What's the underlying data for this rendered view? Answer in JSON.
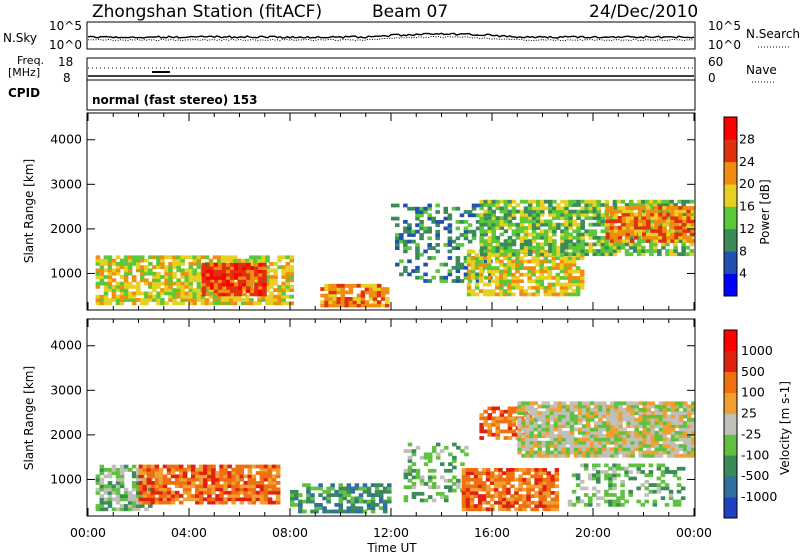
{
  "header": {
    "station": "Zhongshan Station (fitACF)",
    "beam": "Beam 07",
    "date": "24/Dec/2010"
  },
  "top_panels": {
    "noise": {
      "left_label": "N.Sky",
      "right_label": "N.Search",
      "left_ticks": [
        "10^5",
        "10^0"
      ],
      "right_ticks": [
        "10^5",
        "10^0"
      ]
    },
    "freq": {
      "left_label_1": "Freq.",
      "left_label_2": "[MHz]",
      "left_ticks": [
        "18",
        "8"
      ],
      "right_label": "Nave",
      "right_ticks": [
        "60",
        "0"
      ]
    },
    "cpid": {
      "label": "CPID",
      "text": "normal (fast stereo) 153"
    }
  },
  "chart_data": [
    {
      "type": "heatmap",
      "name": "power",
      "ylabel": "Slant Range [km]",
      "yticks": [
        1000,
        2000,
        3000,
        4000
      ],
      "ylim": [
        180,
        4600
      ],
      "colorbar_label": "Power [dB]",
      "colorbar_ticks": [
        "4",
        "8",
        "12",
        "16",
        "20",
        "24",
        "28"
      ],
      "colors": [
        "#0000ff",
        "#2050b0",
        "#3a8a5a",
        "#5ac83a",
        "#e8d020",
        "#f08c10",
        "#e03010",
        "#ff0000"
      ],
      "blobs": [
        {
          "t0": 0.3,
          "t1": 8.0,
          "r0": 300,
          "r1": 1400,
          "level": 4,
          "density": 0.75
        },
        {
          "t0": 4.5,
          "t1": 7.0,
          "r0": 500,
          "r1": 1200,
          "level": 6,
          "density": 0.9
        },
        {
          "t0": 9.2,
          "t1": 11.8,
          "r0": 250,
          "r1": 700,
          "level": 5,
          "density": 0.8
        },
        {
          "t0": 12.0,
          "t1": 16.0,
          "r0": 800,
          "r1": 2500,
          "level": 2,
          "density": 0.35
        },
        {
          "t0": 15.0,
          "t1": 19.5,
          "r0": 500,
          "r1": 1500,
          "level": 4,
          "density": 0.7
        },
        {
          "t0": 15.5,
          "t1": 23.9,
          "r0": 1400,
          "r1": 2600,
          "level": 3,
          "density": 0.75
        },
        {
          "t0": 20.5,
          "t1": 23.9,
          "r0": 1700,
          "r1": 2500,
          "level": 5,
          "density": 0.8
        }
      ]
    },
    {
      "type": "heatmap",
      "name": "velocity",
      "ylabel": "Slant Range [km]",
      "yticks": [
        1000,
        2000,
        3000,
        4000
      ],
      "ylim": [
        180,
        4600
      ],
      "xlabel": "Time UT",
      "xticks": [
        "00:00",
        "04:00",
        "08:00",
        "12:00",
        "16:00",
        "20:00",
        "00:00"
      ],
      "colorbar_label": "Velocity [m s-1]",
      "colorbar_ticks": [
        "1000",
        "500",
        "100",
        "25",
        "-25",
        "-100",
        "-500",
        "-1000"
      ],
      "colors": [
        "#2040c0",
        "#3070a0",
        "#3a8a5a",
        "#60c040",
        "#c0c0b8",
        "#f0a030",
        "#f07010",
        "#e02010",
        "#ff0000"
      ],
      "blobs": [
        {
          "t0": 0.3,
          "t1": 2.5,
          "r0": 300,
          "r1": 1300,
          "level": 3,
          "density": 0.7
        },
        {
          "t0": 2.0,
          "t1": 7.5,
          "r0": 450,
          "r1": 1300,
          "level": 6,
          "density": 0.85
        },
        {
          "t0": 8.0,
          "t1": 12.0,
          "r0": 250,
          "r1": 900,
          "level": 2,
          "density": 0.6
        },
        {
          "t0": 12.5,
          "t1": 15.0,
          "r0": 500,
          "r1": 1800,
          "level": 3,
          "density": 0.35
        },
        {
          "t0": 14.8,
          "t1": 18.5,
          "r0": 300,
          "r1": 1200,
          "level": 6,
          "density": 0.8
        },
        {
          "t0": 15.5,
          "t1": 17.5,
          "r0": 1900,
          "r1": 2600,
          "level": 6,
          "density": 0.65
        },
        {
          "t0": 17.0,
          "t1": 23.9,
          "r0": 1500,
          "r1": 2700,
          "level": 4,
          "density": 0.9
        },
        {
          "t0": 19.0,
          "t1": 23.5,
          "r0": 400,
          "r1": 1300,
          "level": 3,
          "density": 0.35
        }
      ]
    }
  ]
}
